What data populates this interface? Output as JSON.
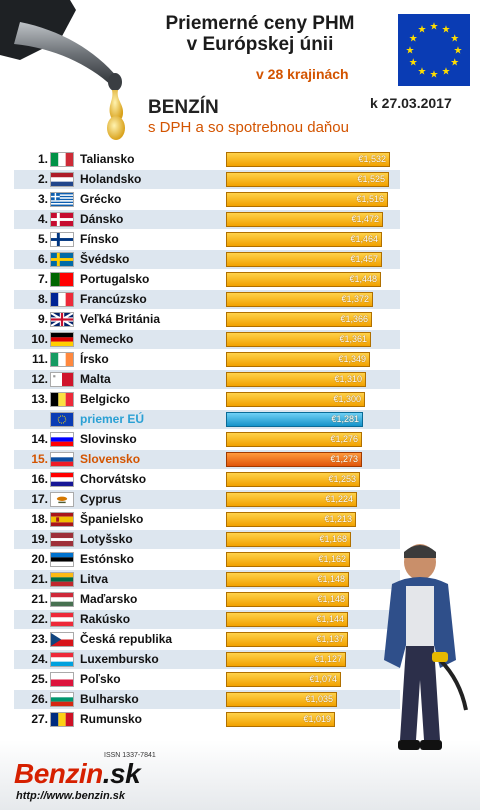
{
  "header": {
    "title_line1": "Priemerné ceny PHM",
    "title_line2": "v Európskej únii",
    "countries_note": "v 28 krajinách",
    "fuel": "BENZÍN",
    "date": "k 27.03.2017",
    "subtitle": "s DPH a so spotrebnou daňou"
  },
  "footer": {
    "issn": "ISSN 1337-7841",
    "logo_main": "Benzin",
    "logo_suffix": ".sk",
    "url": "http://www.benzin.sk"
  },
  "chart_data": {
    "type": "bar",
    "orientation": "horizontal",
    "xlim": [
      0,
      1.6
    ],
    "rows": [
      {
        "rank": "1.",
        "name": "Taliansko",
        "value": 1.532,
        "label": "€1,532"
      },
      {
        "rank": "2.",
        "name": "Holandsko",
        "value": 1.525,
        "label": "€1,525"
      },
      {
        "rank": "3.",
        "name": "Grécko",
        "value": 1.516,
        "label": "€1,516"
      },
      {
        "rank": "4.",
        "name": "Dánsko",
        "value": 1.472,
        "label": "€1,472"
      },
      {
        "rank": "5.",
        "name": "Fínsko",
        "value": 1.464,
        "label": "€1,464"
      },
      {
        "rank": "6.",
        "name": "Švédsko",
        "value": 1.457,
        "label": "€1,457"
      },
      {
        "rank": "7.",
        "name": "Portugalsko",
        "value": 1.448,
        "label": "€1,448"
      },
      {
        "rank": "8.",
        "name": "Francúzsko",
        "value": 1.372,
        "label": "€1,372"
      },
      {
        "rank": "9.",
        "name": "Veľká Británia",
        "value": 1.366,
        "label": "€1,366"
      },
      {
        "rank": "10.",
        "name": "Nemecko",
        "value": 1.361,
        "label": "€1,361"
      },
      {
        "rank": "11.",
        "name": "Írsko",
        "value": 1.349,
        "label": "€1,349"
      },
      {
        "rank": "12.",
        "name": "Malta",
        "value": 1.31,
        "label": "€1,310"
      },
      {
        "rank": "13.",
        "name": "Belgicko",
        "value": 1.3,
        "label": "€1,300"
      },
      {
        "rank": "",
        "name": "priemer EÚ",
        "value": 1.281,
        "label": "€1,281",
        "highlight": "eu"
      },
      {
        "rank": "14.",
        "name": "Slovinsko",
        "value": 1.276,
        "label": "€1,276"
      },
      {
        "rank": "15.",
        "name": "Slovensko",
        "value": 1.273,
        "label": "€1,273",
        "highlight": "sk"
      },
      {
        "rank": "16.",
        "name": "Chorvátsko",
        "value": 1.253,
        "label": "€1,253"
      },
      {
        "rank": "17.",
        "name": "Cyprus",
        "value": 1.224,
        "label": "€1,224"
      },
      {
        "rank": "18.",
        "name": "Španielsko",
        "value": 1.213,
        "label": "€1,213"
      },
      {
        "rank": "19.",
        "name": "Lotyšsko",
        "value": 1.168,
        "label": "€1,168"
      },
      {
        "rank": "20.",
        "name": "Estónsko",
        "value": 1.162,
        "label": "€1,162"
      },
      {
        "rank": "21.",
        "name": "Litva",
        "value": 1.148,
        "label": "€1,148"
      },
      {
        "rank": "21.",
        "name": "Maďarsko",
        "value": 1.148,
        "label": "€1,148"
      },
      {
        "rank": "22.",
        "name": "Rakúsko",
        "value": 1.144,
        "label": "€1,144"
      },
      {
        "rank": "23.",
        "name": "Česká republika",
        "value": 1.137,
        "label": "€1,137"
      },
      {
        "rank": "24.",
        "name": "Luxembursko",
        "value": 1.127,
        "label": "€1,127"
      },
      {
        "rank": "25.",
        "name": "Poľsko",
        "value": 1.074,
        "label": "€1,074"
      },
      {
        "rank": "26.",
        "name": "Bulharsko",
        "value": 1.035,
        "label": "€1,035"
      },
      {
        "rank": "27.",
        "name": "Rumunsko",
        "value": 1.019,
        "label": "€1,019"
      }
    ]
  },
  "flags": [
    {
      "type": "v",
      "c": [
        "#009246",
        "#ffffff",
        "#ce2b37"
      ]
    },
    {
      "type": "h",
      "c": [
        "#ae1c28",
        "#ffffff",
        "#21468b"
      ]
    },
    {
      "type": "greece"
    },
    {
      "type": "nordic",
      "bg": "#c60c30",
      "cross": "#ffffff"
    },
    {
      "type": "nordic",
      "bg": "#ffffff",
      "cross": "#003580"
    },
    {
      "type": "nordic",
      "bg": "#006aa7",
      "cross": "#fecc00"
    },
    {
      "type": "v2",
      "c": [
        "#006600",
        "#ff0000"
      ]
    },
    {
      "type": "v",
      "c": [
        "#002395",
        "#ffffff",
        "#ed2939"
      ]
    },
    {
      "type": "uk"
    },
    {
      "type": "h",
      "c": [
        "#000000",
        "#dd0000",
        "#ffce00"
      ]
    },
    {
      "type": "v",
      "c": [
        "#169b62",
        "#ffffff",
        "#ff883e"
      ]
    },
    {
      "type": "malta"
    },
    {
      "type": "v",
      "c": [
        "#000000",
        "#fae042",
        "#ed2939"
      ]
    },
    {
      "type": "eu"
    },
    {
      "type": "h",
      "c": [
        "#ffffff",
        "#0000ff",
        "#ff0000"
      ]
    },
    {
      "type": "h",
      "c": [
        "#ffffff",
        "#0b4ea2",
        "#ee1c25"
      ]
    },
    {
      "type": "h",
      "c": [
        "#ff0000",
        "#ffffff",
        "#171796"
      ]
    },
    {
      "type": "cyprus"
    },
    {
      "type": "spain"
    },
    {
      "type": "latvia"
    },
    {
      "type": "h",
      "c": [
        "#0072ce",
        "#000000",
        "#ffffff"
      ]
    },
    {
      "type": "h",
      "c": [
        "#fdb913",
        "#006a44",
        "#c1272d"
      ]
    },
    {
      "type": "h",
      "c": [
        "#ce2939",
        "#ffffff",
        "#477050"
      ]
    },
    {
      "type": "h",
      "c": [
        "#ed2939",
        "#ffffff",
        "#ed2939"
      ]
    },
    {
      "type": "czech"
    },
    {
      "type": "h",
      "c": [
        "#ed2939",
        "#ffffff",
        "#00a1de"
      ]
    },
    {
      "type": "h2",
      "c": [
        "#ffffff",
        "#dc143c"
      ]
    },
    {
      "type": "h",
      "c": [
        "#ffffff",
        "#00966e",
        "#d62612"
      ]
    },
    {
      "type": "v",
      "c": [
        "#002b7f",
        "#fcd116",
        "#ce1126"
      ]
    }
  ]
}
